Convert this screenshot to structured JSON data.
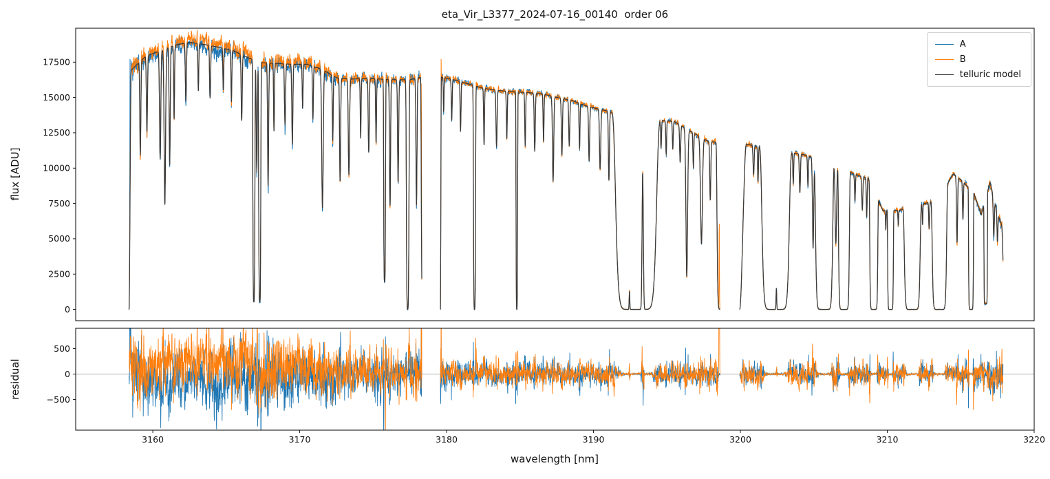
{
  "chart_data": {
    "type": "line",
    "title": "eta_Vir_L3377_2024-07-16_00140  order 06",
    "xlabel": "wavelength [nm]",
    "panels": [
      {
        "name": "flux",
        "ylabel": "flux [ADU]",
        "ylim": [
          -800,
          19900
        ],
        "yticks": [
          0,
          2500,
          5000,
          7500,
          10000,
          12500,
          15000,
          17500
        ]
      },
      {
        "name": "residual",
        "ylabel": "residual",
        "ylim": [
          -1100,
          900
        ],
        "yticks": [
          -500,
          0,
          500
        ],
        "zero_line_color": "#909090"
      }
    ],
    "x_axis": {
      "lim": [
        3154.75,
        3220.0
      ],
      "ticks": [
        3160,
        3170,
        3180,
        3190,
        3200,
        3210,
        3220
      ]
    },
    "legend": {
      "position": "upper right",
      "entries": [
        {
          "label": "A",
          "color": "#1f77b4"
        },
        {
          "label": "B",
          "color": "#ff7f0e"
        },
        {
          "label": "telluric model",
          "color": "#3a3a3a"
        }
      ]
    },
    "spectrum": {
      "sample_step": 0.012,
      "segments": [
        {
          "range": [
            3158.38,
            3178.32
          ],
          "ramp_in": 0.15
        },
        {
          "range": [
            3179.58,
            3198.62
          ],
          "ramp_in": 0.06
        },
        {
          "range": [
            3199.95,
            3217.88
          ],
          "ramp_in": 0.45
        }
      ],
      "continuum_anchors": [
        [
          3158.4,
          16800
        ],
        [
          3159.5,
          17900
        ],
        [
          3160.5,
          18300
        ],
        [
          3161.5,
          18700
        ],
        [
          3162.5,
          18900
        ],
        [
          3163.5,
          18750
        ],
        [
          3164.5,
          18550
        ],
        [
          3165.5,
          18300
        ],
        [
          3166.5,
          17800
        ],
        [
          3167.5,
          17450
        ],
        [
          3168.5,
          17400
        ],
        [
          3169.5,
          17350
        ],
        [
          3170.5,
          17350
        ],
        [
          3171.5,
          17000
        ],
        [
          3172.5,
          16400
        ],
        [
          3173.5,
          16300
        ],
        [
          3174.5,
          16350
        ],
        [
          3175.5,
          16300
        ],
        [
          3176.5,
          16250
        ],
        [
          3177.5,
          16250
        ],
        [
          3178.3,
          16450
        ],
        [
          3179.6,
          16450
        ],
        [
          3180.5,
          16250
        ],
        [
          3181.5,
          15950
        ],
        [
          3182.5,
          15650
        ],
        [
          3183.5,
          15500
        ],
        [
          3184.5,
          15400
        ],
        [
          3185.5,
          15350
        ],
        [
          3186.5,
          15250
        ],
        [
          3187.5,
          15000
        ],
        [
          3188.5,
          14800
        ],
        [
          3189.5,
          14400
        ],
        [
          3190.5,
          14150
        ],
        [
          3191.5,
          13900
        ],
        [
          3192.5,
          13650
        ],
        [
          3193.4,
          13500
        ],
        [
          3194.5,
          13400
        ],
        [
          3195.5,
          13300
        ],
        [
          3196.8,
          12500
        ],
        [
          3197.8,
          11900
        ],
        [
          3198.6,
          11800
        ],
        [
          3200.0,
          11750
        ],
        [
          3200.6,
          11650
        ],
        [
          3201.5,
          11500
        ],
        [
          3202.5,
          11300
        ],
        [
          3203.5,
          11100
        ],
        [
          3204.3,
          10950
        ],
        [
          3205.2,
          10700
        ],
        [
          3206.0,
          10500
        ],
        [
          3206.6,
          10300
        ],
        [
          3207.5,
          9700
        ],
        [
          3208.1,
          9450
        ],
        [
          3208.7,
          9300
        ],
        [
          3209.7,
          7000
        ],
        [
          3210.8,
          7000
        ],
        [
          3211.6,
          7300
        ],
        [
          3212.6,
          7500
        ],
        [
          3213.5,
          7800
        ],
        [
          3214.5,
          9600
        ],
        [
          3215.1,
          9100
        ],
        [
          3215.9,
          8200
        ],
        [
          3216.4,
          6700
        ],
        [
          3217.0,
          9000
        ],
        [
          3217.5,
          6800
        ],
        [
          3217.85,
          5800
        ]
      ],
      "absorption_lines": [
        [
          3159.15,
          0.05,
          0.38,
          2
        ],
        [
          3159.6,
          0.05,
          0.3,
          2
        ],
        [
          3160.5,
          0.06,
          0.42,
          2
        ],
        [
          3160.82,
          0.07,
          0.6,
          2
        ],
        [
          3161.15,
          0.05,
          0.45,
          2
        ],
        [
          3161.45,
          0.04,
          0.28,
          2
        ],
        [
          3162.25,
          0.05,
          0.22,
          2
        ],
        [
          3163.1,
          0.04,
          0.18,
          2
        ],
        [
          3163.9,
          0.05,
          0.2,
          2
        ],
        [
          3164.8,
          0.04,
          0.16,
          2
        ],
        [
          3165.35,
          0.04,
          0.2,
          2
        ],
        [
          3166.05,
          0.05,
          0.26,
          2
        ],
        [
          3166.88,
          0.08,
          0.97,
          4
        ],
        [
          3167.08,
          0.05,
          0.45,
          2
        ],
        [
          3167.28,
          0.08,
          0.97,
          4
        ],
        [
          3167.85,
          0.05,
          0.5,
          2
        ],
        [
          3168.25,
          0.04,
          0.28,
          2
        ],
        [
          3169.0,
          0.05,
          0.25,
          2
        ],
        [
          3169.5,
          0.05,
          0.33,
          2
        ],
        [
          3170.2,
          0.04,
          0.18,
          2
        ],
        [
          3170.9,
          0.04,
          0.22,
          2
        ],
        [
          3171.55,
          0.07,
          0.58,
          2
        ],
        [
          3172.25,
          0.04,
          0.28,
          2
        ],
        [
          3172.75,
          0.05,
          0.45,
          2
        ],
        [
          3173.35,
          0.06,
          0.42,
          2
        ],
        [
          3174.15,
          0.04,
          0.26,
          2
        ],
        [
          3174.7,
          0.05,
          0.32,
          2
        ],
        [
          3175.2,
          0.04,
          0.28,
          2
        ],
        [
          3175.78,
          0.07,
          0.88,
          4
        ],
        [
          3176.15,
          0.05,
          0.55,
          2
        ],
        [
          3176.7,
          0.05,
          0.45,
          2
        ],
        [
          3177.35,
          0.1,
          1.0,
          4
        ],
        [
          3177.95,
          0.05,
          0.55,
          2
        ],
        [
          3178.55,
          0.28,
          1.0,
          12
        ],
        [
          3179.8,
          0.03,
          0.15,
          2
        ],
        [
          3180.35,
          0.04,
          0.18,
          2
        ],
        [
          3180.95,
          0.04,
          0.22,
          2
        ],
        [
          3181.9,
          0.08,
          1.0,
          4
        ],
        [
          3182.55,
          0.04,
          0.26,
          2
        ],
        [
          3183.4,
          0.05,
          0.26,
          2
        ],
        [
          3184.1,
          0.04,
          0.22,
          2
        ],
        [
          3184.78,
          0.06,
          1.0,
          4
        ],
        [
          3185.35,
          0.04,
          0.25,
          2
        ],
        [
          3186.0,
          0.05,
          0.27,
          2
        ],
        [
          3186.6,
          0.04,
          0.22,
          2
        ],
        [
          3187.25,
          0.06,
          0.4,
          2
        ],
        [
          3187.85,
          0.05,
          0.27,
          2
        ],
        [
          3188.35,
          0.05,
          0.22,
          2
        ],
        [
          3189.05,
          0.04,
          0.22,
          2
        ],
        [
          3189.7,
          0.05,
          0.27,
          2
        ],
        [
          3190.45,
          0.06,
          0.3,
          2
        ],
        [
          3191.05,
          0.05,
          0.35,
          2
        ],
        [
          3192.9,
          1.42,
          1.0,
          12
        ],
        [
          3194.6,
          0.04,
          0.15,
          2
        ],
        [
          3194.95,
          0.04,
          0.18,
          2
        ],
        [
          3195.4,
          0.04,
          0.15,
          2
        ],
        [
          3195.9,
          0.05,
          0.2,
          2
        ],
        [
          3196.35,
          0.08,
          0.82,
          2
        ],
        [
          3196.8,
          0.04,
          0.2,
          2
        ],
        [
          3197.35,
          0.09,
          0.62,
          2
        ],
        [
          3197.95,
          0.05,
          0.35,
          2
        ],
        [
          3198.8,
          0.4,
          1.0,
          12
        ],
        [
          3200.9,
          0.05,
          0.18,
          2
        ],
        [
          3201.2,
          0.04,
          0.22,
          2
        ],
        [
          3202.4,
          0.95,
          1.0,
          12
        ],
        [
          3203.6,
          0.04,
          0.2,
          2
        ],
        [
          3204.05,
          0.05,
          0.25,
          2
        ],
        [
          3204.6,
          0.04,
          0.2,
          2
        ],
        [
          3204.95,
          0.06,
          0.6,
          2
        ],
        [
          3205.7,
          0.6,
          1.0,
          12
        ],
        [
          3206.5,
          0.07,
          0.55,
          2
        ],
        [
          3207.05,
          0.38,
          1.0,
          12
        ],
        [
          3207.8,
          0.04,
          0.2,
          2
        ],
        [
          3208.3,
          0.05,
          0.25,
          2
        ],
        [
          3208.6,
          0.04,
          0.3,
          2
        ],
        [
          3209.08,
          0.28,
          1.0,
          12
        ],
        [
          3209.9,
          0.03,
          0.2,
          2
        ],
        [
          3210.22,
          0.2,
          1.0,
          12
        ],
        [
          3210.75,
          0.03,
          0.15,
          2
        ],
        [
          3211.7,
          0.55,
          1.0,
          12
        ],
        [
          3212.4,
          0.03,
          0.2,
          2
        ],
        [
          3212.85,
          0.04,
          0.25,
          2
        ],
        [
          3213.55,
          0.5,
          1.0,
          12
        ],
        [
          3214.75,
          0.05,
          0.5,
          2
        ],
        [
          3215.15,
          0.04,
          0.3,
          2
        ],
        [
          3215.7,
          0.17,
          1.0,
          12
        ],
        [
          3216.7,
          0.12,
          0.95,
          12
        ],
        [
          3217.25,
          0.05,
          0.35,
          2
        ],
        [
          3217.5,
          0.04,
          0.3,
          2
        ],
        [
          3217.95,
          0.08,
          0.9,
          2
        ]
      ],
      "window_spikes": [
        [
          3192.45,
          1300,
          0.03
        ],
        [
          3193.35,
          9700,
          0.06
        ],
        [
          3202.45,
          1500,
          0.03
        ]
      ],
      "noise_amplitude_anchors": [
        [
          3158.4,
          560
        ],
        [
          3160,
          480
        ],
        [
          3162,
          430
        ],
        [
          3164,
          470
        ],
        [
          3166,
          540
        ],
        [
          3167.5,
          560
        ],
        [
          3169,
          450
        ],
        [
          3171,
          470
        ],
        [
          3172.5,
          420
        ],
        [
          3174,
          300
        ],
        [
          3175.5,
          340
        ],
        [
          3177,
          300
        ],
        [
          3178.3,
          340
        ],
        [
          3179.7,
          240
        ],
        [
          3181,
          190
        ],
        [
          3183,
          180
        ],
        [
          3185,
          190
        ],
        [
          3187,
          170
        ],
        [
          3189,
          160
        ],
        [
          3191,
          160
        ],
        [
          3193,
          150
        ],
        [
          3195,
          160
        ],
        [
          3197,
          170
        ],
        [
          3198.6,
          180
        ],
        [
          3200,
          190
        ],
        [
          3202,
          150
        ],
        [
          3204,
          160
        ],
        [
          3206,
          170
        ],
        [
          3208,
          170
        ],
        [
          3210,
          150
        ],
        [
          3212,
          160
        ],
        [
          3214,
          150
        ],
        [
          3216,
          180
        ],
        [
          3217.9,
          320
        ]
      ],
      "offset_A_anchors": [
        [
          3158.4,
          -80
        ],
        [
          3162,
          -140
        ],
        [
          3166,
          -100
        ],
        [
          3169,
          -60
        ],
        [
          3172,
          -30
        ],
        [
          3176,
          -20
        ],
        [
          3180,
          0
        ],
        [
          3218,
          0
        ]
      ],
      "offset_B_anchors": [
        [
          3158.4,
          120
        ],
        [
          3161,
          200
        ],
        [
          3164,
          260
        ],
        [
          3166.5,
          240
        ],
        [
          3168,
          160
        ],
        [
          3170,
          120
        ],
        [
          3172,
          60
        ],
        [
          3174,
          40
        ],
        [
          3177,
          30
        ],
        [
          3179.6,
          20
        ],
        [
          3185,
          10
        ],
        [
          3200,
          0
        ],
        [
          3218,
          0
        ]
      ],
      "edge_spikes_A": [
        [
          3158.45,
          17900,
          0.02
        ]
      ],
      "edge_spikes_B": [
        [
          3178.28,
          16800,
          0.018
        ],
        [
          3179.63,
          17900,
          0.02
        ],
        [
          3198.56,
          6300,
          0.02
        ],
        [
          3217.8,
          6800,
          0.02
        ]
      ]
    }
  }
}
